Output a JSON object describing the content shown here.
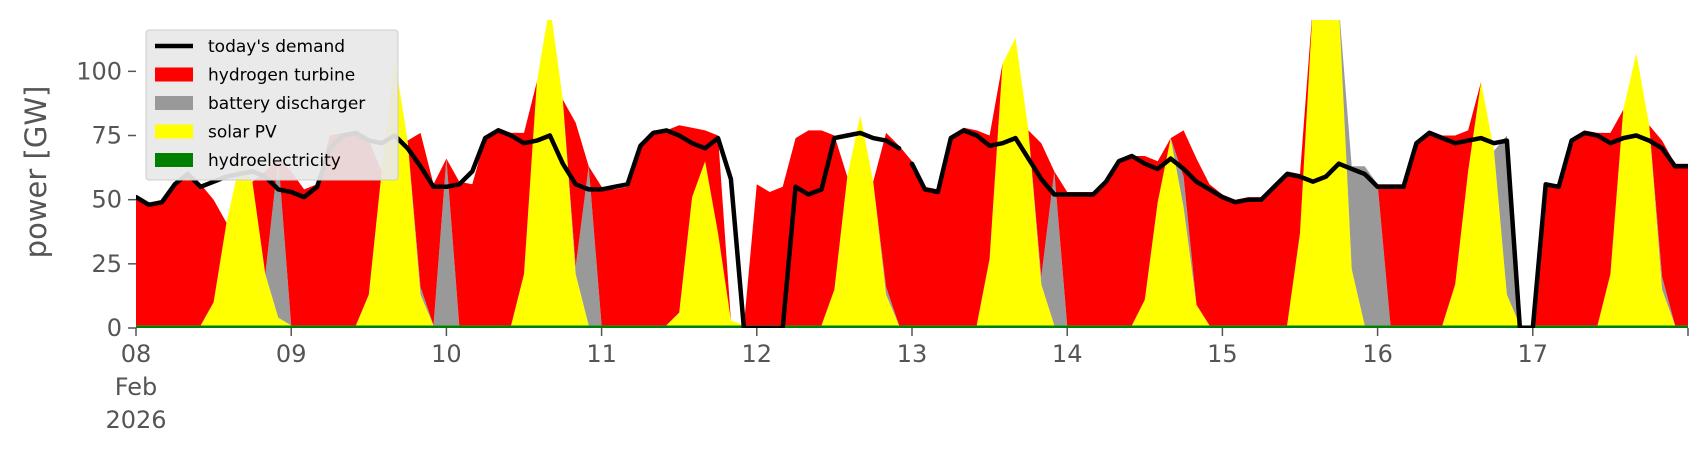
{
  "chart_data": {
    "type": "area",
    "title": "",
    "xlabel": "",
    "ylabel": "power [GW]",
    "ylim": [
      0,
      120
    ],
    "yticks": [
      0,
      25,
      50,
      75,
      100
    ],
    "x_range_hours": [
      0,
      240
    ],
    "step_hours": 2,
    "xticks": [
      {
        "hour": 0,
        "label": "08",
        "sub1": "Feb",
        "sub2": "2026"
      },
      {
        "hour": 24,
        "label": "09"
      },
      {
        "hour": 48,
        "label": "10"
      },
      {
        "hour": 72,
        "label": "11"
      },
      {
        "hour": 96,
        "label": "12"
      },
      {
        "hour": 120,
        "label": "13"
      },
      {
        "hour": 144,
        "label": "14"
      },
      {
        "hour": 168,
        "label": "15"
      },
      {
        "hour": 192,
        "label": "16"
      },
      {
        "hour": 216,
        "label": "17"
      },
      {
        "hour": 240,
        "label": ""
      }
    ],
    "stack_series": [
      {
        "name": "hydroelectricity",
        "color": "#008000",
        "values": [
          1,
          1,
          1,
          1,
          1,
          1,
          1,
          1,
          1,
          1,
          1,
          1,
          1,
          1,
          1,
          1,
          1,
          1,
          1,
          1,
          1,
          1,
          1,
          1,
          1,
          1,
          1,
          1,
          1,
          1,
          1,
          1,
          1,
          1,
          1,
          1,
          1,
          1,
          1,
          1,
          1,
          1,
          1,
          1,
          1,
          1,
          1,
          1,
          1,
          1,
          1,
          1,
          1,
          1,
          1,
          1,
          1,
          1,
          1,
          1,
          1,
          1,
          1,
          1,
          1,
          1,
          1,
          1,
          1,
          1,
          1,
          1,
          1,
          1,
          1,
          1,
          1,
          1,
          1,
          1,
          1,
          1,
          1,
          1,
          1,
          1,
          1,
          1,
          1,
          1,
          1,
          1,
          1,
          1,
          1,
          1,
          1,
          1,
          1,
          1,
          1,
          1,
          1,
          1,
          1,
          1,
          1,
          1,
          1,
          1,
          1,
          1,
          1,
          1,
          1,
          1,
          1,
          1,
          1,
          1,
          1
        ]
      },
      {
        "name": "solar PV",
        "color": "#ffff00",
        "values": [
          0,
          0,
          0,
          0,
          0,
          0,
          9,
          40,
          63,
          56,
          20,
          3,
          0,
          0,
          0,
          0,
          0,
          0,
          12,
          60,
          104,
          72,
          12,
          0,
          0,
          0,
          0,
          0,
          0,
          0,
          20,
          95,
          125,
          88,
          20,
          0,
          0,
          0,
          0,
          0,
          0,
          0,
          5,
          50,
          64,
          36,
          2,
          0,
          0,
          0,
          0,
          0,
          0,
          0,
          14,
          58,
          82,
          56,
          12,
          0,
          0,
          0,
          0,
          0,
          0,
          0,
          26,
          102,
          112,
          76,
          16,
          0,
          0,
          0,
          0,
          0,
          0,
          0,
          10,
          48,
          73,
          46,
          8,
          0,
          0,
          0,
          0,
          0,
          0,
          0,
          36,
          125,
          125,
          125,
          22,
          0,
          0,
          0,
          0,
          0,
          0,
          0,
          16,
          60,
          95,
          68,
          12,
          0,
          0,
          0,
          0,
          0,
          0,
          0,
          20,
          84,
          106,
          78,
          14,
          0,
          0
        ]
      },
      {
        "name": "battery discharger",
        "color": "#999999",
        "values": [
          0,
          0,
          0,
          0,
          0,
          0,
          0,
          0,
          0,
          0,
          0,
          62,
          0,
          0,
          0,
          0,
          0,
          0,
          0,
          0,
          0,
          0,
          3,
          0,
          65,
          0,
          0,
          0,
          0,
          0,
          0,
          0,
          0,
          0,
          3,
          62,
          0,
          0,
          0,
          0,
          0,
          0,
          0,
          0,
          0,
          0,
          0,
          0,
          0,
          0,
          0,
          0,
          0,
          0,
          0,
          0,
          0,
          0,
          3,
          0,
          0,
          0,
          0,
          0,
          0,
          0,
          0,
          0,
          0,
          0,
          3,
          60,
          0,
          0,
          0,
          0,
          0,
          0,
          0,
          0,
          0,
          12,
          0,
          0,
          0,
          0,
          0,
          0,
          0,
          0,
          0,
          0,
          0,
          0,
          40,
          62,
          55,
          0,
          0,
          0,
          0,
          0,
          0,
          0,
          0,
          0,
          62,
          0,
          0,
          0,
          0,
          0,
          0,
          0,
          0,
          0,
          0,
          0,
          5,
          0,
          0
        ]
      },
      {
        "name": "hydrogen turbine",
        "color": "#ff0000",
        "values": [
          50,
          48,
          48,
          56,
          60,
          55,
          40,
          0,
          0,
          0,
          40,
          0,
          60,
          53,
          55,
          74,
          75,
          75,
          60,
          0,
          0,
          0,
          60,
          55,
          0,
          56,
          55,
          73,
          77,
          75,
          55,
          0,
          0,
          0,
          56,
          0,
          54,
          53,
          54,
          71,
          76,
          76,
          73,
          27,
          12,
          38,
          0,
          0,
          55,
          52,
          54,
          73,
          76,
          76,
          60,
          0,
          0,
          0,
          60,
          70,
          64,
          54,
          53,
          74,
          77,
          76,
          48,
          0,
          0,
          0,
          52,
          0,
          52,
          52,
          52,
          57,
          65,
          66,
          56,
          16,
          0,
          18,
          57,
          55,
          51,
          49,
          50,
          50,
          55,
          60,
          23,
          0,
          0,
          0,
          0,
          0,
          0,
          55,
          55,
          72,
          76,
          74,
          58,
          16,
          0,
          0,
          0,
          0,
          0,
          55,
          55,
          73,
          76,
          75,
          55,
          0,
          0,
          0,
          53,
          63,
          63
        ]
      }
    ],
    "demand": {
      "name": "today's demand",
      "color": "#000000",
      "values": [
        51,
        48,
        49,
        56,
        60,
        55,
        57,
        59,
        60,
        61,
        59,
        54,
        53,
        51,
        55,
        70,
        75,
        76,
        73,
        72,
        75,
        70,
        63,
        55,
        55,
        56,
        61,
        74,
        77,
        75,
        72,
        73,
        75,
        64,
        56,
        54,
        54,
        55,
        56,
        71,
        76,
        77,
        75,
        72,
        70,
        74,
        58,
        0,
        0,
        0,
        0,
        55,
        52,
        54,
        74,
        75,
        76,
        74,
        73,
        70,
        64,
        54,
        53,
        74,
        77,
        75,
        71,
        72,
        74,
        66,
        58,
        52,
        52,
        52,
        52,
        57,
        65,
        67,
        64,
        62,
        66,
        62,
        57,
        54,
        51,
        49,
        50,
        50,
        55,
        60,
        59,
        57,
        59,
        64,
        62,
        60,
        55,
        55,
        55,
        72,
        76,
        74,
        72,
        73,
        74,
        72,
        73,
        0,
        0,
        56,
        55,
        73,
        76,
        75,
        72,
        74,
        75,
        73,
        70,
        63,
        63
      ],
      "break_after_index": 59
    },
    "legend": {
      "placement": "top-left",
      "entries": [
        {
          "label": "today's demand",
          "color": "#000000",
          "kind": "line"
        },
        {
          "label": "hydrogen turbine",
          "color": "#ff0000",
          "kind": "patch"
        },
        {
          "label": "battery discharger",
          "color": "#999999",
          "kind": "patch"
        },
        {
          "label": "solar PV",
          "color": "#ffff00",
          "kind": "patch"
        },
        {
          "label": "hydroelectricity",
          "color": "#008000",
          "kind": "patch"
        }
      ]
    },
    "grid": false
  }
}
